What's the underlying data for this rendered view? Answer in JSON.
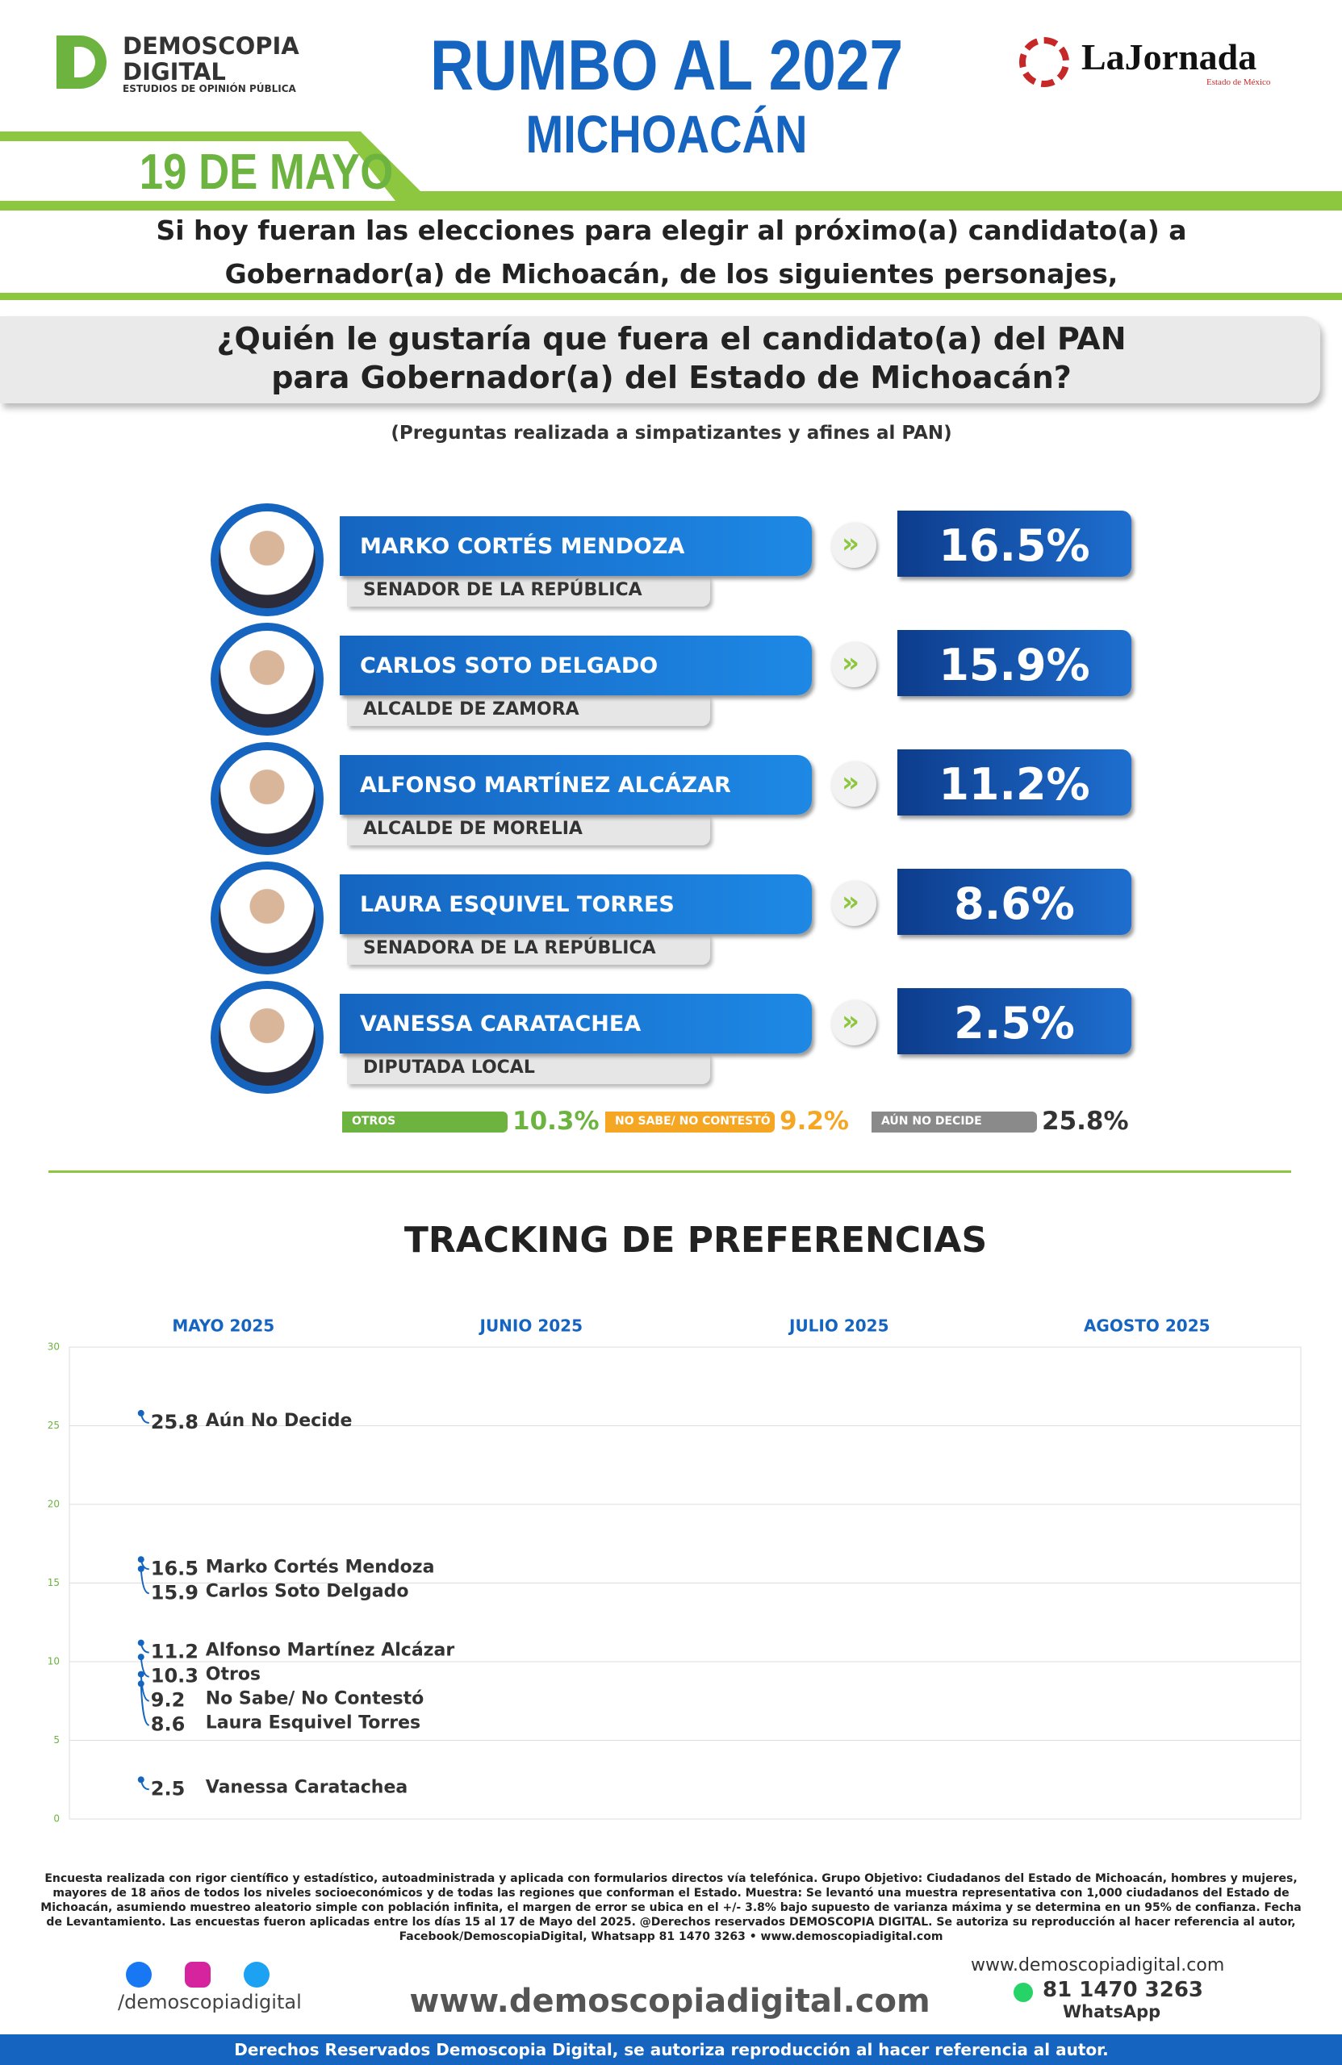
{
  "header": {
    "logo_name": "DEMOSCOPIA",
    "logo_name2": "DIGITAL",
    "logo_tagline": "ESTUDIOS DE OPINIÓN PÚBLICA",
    "title": "RUMBO AL 2027",
    "subtitle": "MICHOACÁN",
    "date": "19 DE MAYO",
    "partner": "LaJornada",
    "partner_tagline": "Estado de México"
  },
  "intro": [
    "Si hoy fueran las elecciones para elegir al próximo(a) candidato(a) a",
    "Gobernador(a) de Michoacán, de los siguientes personajes,"
  ],
  "question": [
    "¿Quién le gustaría que fuera el candidato(a) del PAN",
    "para Gobernador(a) del Estado de Michoacán?"
  ],
  "note": "(Preguntas realizada a simpatizantes y afines al PAN)",
  "candidates": [
    {
      "name": "MARKO CORTÉS MENDOZA",
      "role": "SENADOR DE LA REPÚBLICA",
      "pct": "16.5%"
    },
    {
      "name": "CARLOS SOTO DELGADO",
      "role": "ALCALDE DE ZAMORA",
      "pct": "15.9%"
    },
    {
      "name": "ALFONSO MARTÍNEZ ALCÁZAR",
      "role": "ALCALDE DE MORELIA",
      "pct": "11.2%"
    },
    {
      "name": "LAURA ESQUIVEL TORRES",
      "role": "SENADORA DE LA REPÚBLICA",
      "pct": "8.6%"
    },
    {
      "name": "VANESSA CARATACHEA",
      "role": "DIPUTADA LOCAL",
      "pct": "2.5%"
    }
  ],
  "others": [
    {
      "label": "OTROS",
      "pct": "10.3%",
      "color": "#6cb33f"
    },
    {
      "label": "NO SABE/ NO CONTESTÓ",
      "pct": "9.2%",
      "color": "#f5a623"
    },
    {
      "label": "AÚN NO DECIDE",
      "pct": "25.8%",
      "color": "#8a8a8a"
    }
  ],
  "chart_data": {
    "type": "line",
    "title": "TRACKING DE PREFERENCIAS",
    "categories": [
      "MAYO 2025",
      "JUNIO 2025",
      "JULIO 2025",
      "AGOSTO 2025"
    ],
    "ylim": [
      0,
      30
    ],
    "yticks": [
      0,
      5,
      10,
      15,
      20,
      25,
      30
    ],
    "grid": true,
    "series": [
      {
        "name": "Aún No Decide",
        "color": "#1565c0",
        "values": [
          25.8,
          null,
          null,
          null
        ]
      },
      {
        "name": "Marko Cortés Mendoza",
        "color": "#1565c0",
        "values": [
          16.5,
          null,
          null,
          null
        ]
      },
      {
        "name": "Carlos Soto Delgado",
        "color": "#1565c0",
        "values": [
          15.9,
          null,
          null,
          null
        ]
      },
      {
        "name": "Alfonso Martínez Alcázar",
        "color": "#1565c0",
        "values": [
          11.2,
          null,
          null,
          null
        ]
      },
      {
        "name": "Otros",
        "color": "#1565c0",
        "values": [
          10.3,
          null,
          null,
          null
        ]
      },
      {
        "name": "No Sabe/ No Contestó",
        "color": "#1565c0",
        "values": [
          9.2,
          null,
          null,
          null
        ]
      },
      {
        "name": "Laura Esquivel Torres",
        "color": "#1565c0",
        "values": [
          8.6,
          null,
          null,
          null
        ]
      },
      {
        "name": "Vanessa Caratachea",
        "color": "#1565c0",
        "values": [
          2.5,
          null,
          null,
          null
        ]
      }
    ]
  },
  "footer": {
    "method": "Encuesta realizada con rigor científico y estadístico, autoadministrada y aplicada con formularios directos vía telefónica. Grupo Objetivo: Ciudadanos del Estado de Michoacán, hombres y mujeres, mayores de 18 años de todos los niveles socioeconómicos y de todas las regiones que conforman el Estado. Muestra: Se levantó una muestra representativa con 1,000 ciudadanos del Estado de Michoacán, asumiendo muestreo aleatorio simple con población infinita, el margen de error se ubica en el +/- 3.8% bajo supuesto de varianza máxima y se determina en un 95% de confianza. Fecha de Levantamiento. Las encuestas fueron aplicadas entre los días 15 al 17 de Mayo del 2025. @Derechos reservados DEMOSCOPIA DIGITAL. Se autoriza su reproducción al hacer referencia al autor, Facebook/DemoscopiaDigital, Whatsapp 81 1470 3263 • www.demoscopiadigital.com",
    "social": "/demoscopiadigital",
    "website": "www.demoscopiadigital.com",
    "website_small": "www.demoscopiadigital.com",
    "phone": "81 1470 3263",
    "whatsapp": "WhatsApp",
    "rights": "Derechos Reservados Demoscopia Digital, se autoriza reproducción al hacer referencia al autor."
  }
}
